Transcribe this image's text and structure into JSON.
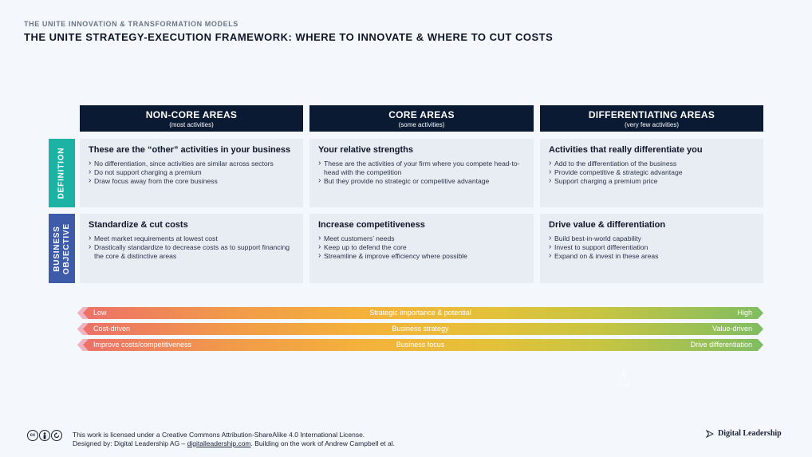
{
  "header": {
    "supertitle": "THE UNITE INNOVATION & TRANSFORMATION MODELS",
    "title": "THE UNITE STRATEGY-EXECUTION FRAMEWORK: WHERE TO INNOVATE & WHERE TO CUT COSTS"
  },
  "columns": [
    {
      "title": "NON-CORE AREAS",
      "subtitle": "(most activities)"
    },
    {
      "title": "CORE AREAS",
      "subtitle": "(some activities)"
    },
    {
      "title": "DIFFERENTIATING AREAS",
      "subtitle": "(very few activities)"
    }
  ],
  "rows": {
    "definition": {
      "label": "DEFINITION",
      "cells": [
        {
          "title": "These are the “other” activities in your business",
          "bullets": [
            "No differentiation, since activities are similar across sectors",
            "Do not support charging a premium",
            "Draw focus away from the core business"
          ]
        },
        {
          "title": "Your relative strengths",
          "bullets": [
            "These are the activities of your firm where you compete head-to-head with the competition",
            "But they provide no strategic or competitive advantage"
          ]
        },
        {
          "title": "Activities that really differentiate you",
          "bullets": [
            "Add to the differentiation of the business",
            "Provide competitive & strategic advantage",
            "Support charging a premium price"
          ]
        }
      ]
    },
    "objective": {
      "label_line1": "BUSINESS",
      "label_line2": "OBJECTIVE",
      "cells": [
        {
          "title": "Standardize & cut costs",
          "bullets": [
            "Meet market requirements at lowest cost",
            "Drastically standardize to decrease costs as to support financing the core & distinctive areas"
          ]
        },
        {
          "title": "Increase competitiveness",
          "bullets": [
            "Meet customers’ needs",
            "Keep up to defend the core",
            "Streamline & improve efficiency where possible"
          ]
        },
        {
          "title": "Drive value & differentiation",
          "bullets": [
            "Build best-in-world capability",
            "Invest to support differentiation",
            "Expand on & invest in these areas"
          ]
        }
      ]
    }
  },
  "bars": [
    {
      "left": "Low",
      "middle": "Strategic importance & potential",
      "right": "High"
    },
    {
      "left": "Cost-driven",
      "middle": "Business strategy",
      "right": "Value-driven"
    },
    {
      "left": "Improve costs/competitiveness",
      "middle": "Business focus",
      "right": "Drive differentiation"
    }
  ],
  "footer": {
    "license_line1": "This work is licensed under a Creative Commons Attribution-ShareAlike 4.0 International License.",
    "license_line2_prefix": "Designed by: Digital Leadership AG – ",
    "license_link": "digitalleadership.com",
    "license_line2_suffix": ". Building on the work of Andrew Campbell et al.",
    "brand": "Digital Leadership",
    "cc_icons": [
      "cc-icon",
      "by-icon",
      "sa-icon"
    ]
  },
  "colors": {
    "header_bg": "#0a1a33",
    "definition_label": "#1db3a4",
    "objective_label": "#3d5ba9",
    "cell_bg": "#e8edf3"
  }
}
